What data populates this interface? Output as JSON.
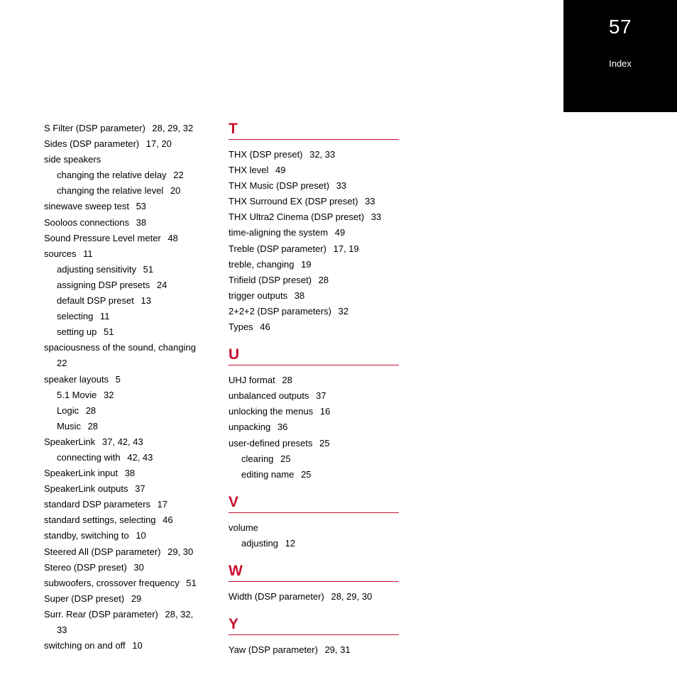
{
  "corner": {
    "page_number": "57",
    "section_label": "Index"
  },
  "colors": {
    "accent": "#c8102e",
    "corner_bg": "#000000",
    "corner_text": "#ffffff",
    "body_text": "#000000",
    "page_bg": "#ffffff"
  },
  "typography": {
    "body_fontsize_pt": 10,
    "letter_fontsize_pt": 16,
    "pagenum_fontsize_pt": 21,
    "font_family": "Arial"
  },
  "columns": [
    {
      "sections": [
        {
          "letter": null,
          "entries": [
            {
              "text": "S Filter (DSP parameter)",
              "pages": "28, 29, 32",
              "sub": false
            },
            {
              "text": "Sides (DSP parameter)",
              "pages": "17, 20",
              "sub": false
            },
            {
              "text": "side speakers",
              "pages": "",
              "sub": false
            },
            {
              "text": "changing the relative delay",
              "pages": "22",
              "sub": true
            },
            {
              "text": "changing the relative level",
              "pages": "20",
              "sub": true
            },
            {
              "text": "sinewave sweep test",
              "pages": "53",
              "sub": false
            },
            {
              "text": "Sooloos connections",
              "pages": "38",
              "sub": false
            },
            {
              "text": "Sound Pressure Level meter",
              "pages": "48",
              "sub": false
            },
            {
              "text": "sources",
              "pages": "11",
              "sub": false
            },
            {
              "text": "adjusting sensitivity",
              "pages": "51",
              "sub": true
            },
            {
              "text": "assigning DSP presets",
              "pages": "24",
              "sub": true
            },
            {
              "text": "default DSP preset",
              "pages": "13",
              "sub": true
            },
            {
              "text": "selecting",
              "pages": "11",
              "sub": true
            },
            {
              "text": "setting up",
              "pages": "51",
              "sub": true
            },
            {
              "text": "spaciousness of the sound, changing",
              "pages": "",
              "sub": false
            },
            {
              "text": "22",
              "pages": "",
              "sub": true
            },
            {
              "text": "speaker layouts",
              "pages": "5",
              "sub": false
            },
            {
              "text": "5.1 Movie",
              "pages": "32",
              "sub": true
            },
            {
              "text": "Logic",
              "pages": "28",
              "sub": true
            },
            {
              "text": "Music",
              "pages": "28",
              "sub": true
            },
            {
              "text": "SpeakerLink",
              "pages": "37, 42, 43",
              "sub": false
            },
            {
              "text": "connecting with",
              "pages": "42, 43",
              "sub": true
            },
            {
              "text": "SpeakerLink input",
              "pages": "38",
              "sub": false
            },
            {
              "text": "SpeakerLink outputs",
              "pages": "37",
              "sub": false
            },
            {
              "text": "standard DSP parameters",
              "pages": "17",
              "sub": false
            },
            {
              "text": "standard settings, selecting",
              "pages": "46",
              "sub": false
            },
            {
              "text": "standby, switching to",
              "pages": "10",
              "sub": false
            },
            {
              "text": "Steered All (DSP parameter)",
              "pages": "29, 30",
              "sub": false
            },
            {
              "text": "Stereo (DSP preset)",
              "pages": "30",
              "sub": false
            },
            {
              "text": "subwoofers, crossover frequency",
              "pages": "51",
              "sub": false
            },
            {
              "text": "Super (DSP preset)",
              "pages": "29",
              "sub": false
            },
            {
              "text": "Surr. Rear (DSP parameter)",
              "pages": "28, 32,",
              "sub": false
            },
            {
              "text": "33",
              "pages": "",
              "sub": true
            },
            {
              "text": "switching on and off",
              "pages": "10",
              "sub": false
            }
          ]
        }
      ]
    },
    {
      "sections": [
        {
          "letter": "T",
          "entries": [
            {
              "text": "THX (DSP preset)",
              "pages": "32, 33",
              "sub": false
            },
            {
              "text": "THX level",
              "pages": "49",
              "sub": false
            },
            {
              "text": "THX Music (DSP preset)",
              "pages": "33",
              "sub": false
            },
            {
              "text": "THX Surround EX (DSP preset)",
              "pages": "33",
              "sub": false
            },
            {
              "text": "THX Ultra2 Cinema (DSP preset)",
              "pages": "33",
              "sub": false
            },
            {
              "text": "time-aligning the system",
              "pages": "49",
              "sub": false
            },
            {
              "text": "Treble (DSP parameter)",
              "pages": "17, 19",
              "sub": false
            },
            {
              "text": "treble, changing",
              "pages": "19",
              "sub": false
            },
            {
              "text": "Trifield (DSP preset)",
              "pages": "28",
              "sub": false
            },
            {
              "text": "trigger outputs",
              "pages": "38",
              "sub": false
            },
            {
              "text": "2+2+2 (DSP parameters)",
              "pages": "32",
              "sub": false
            },
            {
              "text": "Types",
              "pages": "46",
              "sub": false
            }
          ]
        },
        {
          "letter": "U",
          "entries": [
            {
              "text": "UHJ format",
              "pages": "28",
              "sub": false
            },
            {
              "text": "unbalanced outputs",
              "pages": "37",
              "sub": false
            },
            {
              "text": "unlocking the menus",
              "pages": "16",
              "sub": false
            },
            {
              "text": "unpacking",
              "pages": "36",
              "sub": false
            },
            {
              "text": "user-defined presets",
              "pages": "25",
              "sub": false
            },
            {
              "text": "clearing",
              "pages": "25",
              "sub": true
            },
            {
              "text": "editing name",
              "pages": "25",
              "sub": true
            }
          ]
        },
        {
          "letter": "V",
          "entries": [
            {
              "text": "volume",
              "pages": "",
              "sub": false
            },
            {
              "text": "adjusting",
              "pages": "12",
              "sub": true
            }
          ]
        },
        {
          "letter": "W",
          "entries": [
            {
              "text": "Width (DSP parameter)",
              "pages": "28, 29, 30",
              "sub": false
            }
          ]
        },
        {
          "letter": "Y",
          "entries": [
            {
              "text": "Yaw (DSP parameter)",
              "pages": "29, 31",
              "sub": false
            }
          ]
        }
      ]
    }
  ]
}
